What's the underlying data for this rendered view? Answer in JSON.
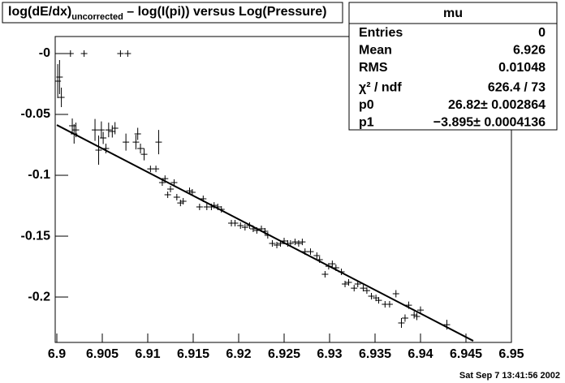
{
  "chart_data": {
    "type": "scatter",
    "title": [
      "log(dE/dx)",
      "uncorrected",
      " – log(I(pi)) versus Log(Pressure)"
    ],
    "footer": "Sat Sep  7 13:41:56 2002",
    "xlim": [
      6.9,
      6.95
    ],
    "ylim": [
      -0.2373,
      0.014
    ],
    "xticks": [
      6.9,
      6.905,
      6.91,
      6.915,
      6.92,
      6.925,
      6.93,
      6.935,
      6.94,
      6.945,
      6.95
    ],
    "yticks": [
      {
        "value": 0,
        "label": "-0"
      },
      -0.05,
      -0.1,
      -0.15,
      -0.2
    ],
    "color": "#000000",
    "x": [
      6.9001,
      6.9003,
      6.9005,
      6.9015,
      6.9017,
      6.9019,
      6.9021,
      6.903,
      6.9042,
      6.9046,
      6.9049,
      6.9051,
      6.9054,
      6.9057,
      6.9061,
      6.9064,
      6.907,
      6.9076,
      6.9078,
      6.9087,
      6.9089,
      6.9092,
      6.9096,
      6.9103,
      6.9109,
      6.9112,
      6.9116,
      6.9119,
      6.9122,
      6.9125,
      6.9129,
      6.9132,
      6.9136,
      6.9139,
      6.9146,
      6.9149,
      6.9157,
      6.9161,
      6.9165,
      6.917,
      6.9173,
      6.9177,
      6.9181,
      6.9192,
      6.9196,
      6.9202,
      6.9207,
      6.9212,
      6.9216,
      6.922,
      6.9225,
      6.9229,
      6.9232,
      6.9237,
      6.9242,
      6.9246,
      6.925,
      6.9254,
      6.9257,
      6.9262,
      6.9266,
      6.927,
      6.9273,
      6.9279,
      6.9286,
      6.9289,
      6.9295,
      6.9299,
      6.9303,
      6.9307,
      6.9313,
      6.9317,
      6.9321,
      6.9327,
      6.9331,
      6.9337,
      6.9341,
      6.9346,
      6.9351,
      6.9354,
      6.9361,
      6.9366,
      6.9373,
      6.9379,
      6.9383,
      6.9387,
      6.9393,
      6.9396,
      6.94,
      6.9429
    ],
    "values": [
      -0.0227,
      -0.0193,
      -0.036,
      0,
      -0.0593,
      -0.066,
      -0.0627,
      0,
      -0.0627,
      -0.0793,
      -0.0627,
      -0.0693,
      -0.078,
      -0.0627,
      -0.064,
      -0.0613,
      0,
      -0.0727,
      0,
      -0.0727,
      -0.066,
      -0.078,
      -0.0827,
      -0.0947,
      -0.0947,
      -0.0727,
      -0.106,
      -0.1027,
      -0.116,
      -0.1113,
      -0.106,
      -0.118,
      -0.1227,
      -0.1213,
      -0.1127,
      -0.114,
      -0.126,
      -0.1193,
      -0.126,
      -0.126,
      -0.1247,
      -0.126,
      -0.128,
      -0.1393,
      -0.1393,
      -0.1413,
      -0.1427,
      -0.1413,
      -0.144,
      -0.1453,
      -0.144,
      -0.146,
      -0.1493,
      -0.156,
      -0.1573,
      -0.156,
      -0.154,
      -0.156,
      -0.156,
      -0.1547,
      -0.156,
      -0.1547,
      -0.1627,
      -0.1627,
      -0.166,
      -0.1693,
      -0.1813,
      -0.1747,
      -0.1727,
      -0.176,
      -0.1793,
      -0.1893,
      -0.188,
      -0.1927,
      -0.1893,
      -0.1927,
      -0.1947,
      -0.1993,
      -0.2007,
      -0.2027,
      -0.206,
      -0.206,
      -0.1973,
      -0.2213,
      -0.2173,
      -0.2067,
      -0.2147,
      -0.216,
      -0.2107,
      -0.2227
    ],
    "yerr": [
      0.014,
      0.014,
      0.008,
      0,
      0.006,
      0.008,
      0.006,
      0,
      0.009,
      0.012,
      0.007,
      0.005,
      0.004,
      0.006,
      0.005,
      0.005,
      0,
      0.007,
      0,
      0.006,
      0.005,
      0.004,
      0.005,
      0.002,
      0.002,
      0.01,
      0.002,
      0.002,
      0.002,
      0.002,
      0.002,
      0.002,
      0.002,
      0.002,
      0.002,
      0.002,
      0.002,
      0.002,
      0.002,
      0.002,
      0.002,
      0.002,
      0.002,
      0.002,
      0.002,
      0.002,
      0.002,
      0.002,
      0.002,
      0.002,
      0.002,
      0.002,
      0.002,
      0.002,
      0.002,
      0.002,
      0.002,
      0.002,
      0.002,
      0.002,
      0.002,
      0.002,
      0.002,
      0.002,
      0.002,
      0.002,
      0.002,
      0.002,
      0.002,
      0.002,
      0.002,
      0.002,
      0.002,
      0.002,
      0.002,
      0.002,
      0.002,
      0.002,
      0.002,
      0.002,
      0.002,
      0.002,
      0.003,
      0.004,
      0.003,
      0.003,
      0.003,
      0.003,
      0.003,
      0.004
    ],
    "fit": {
      "x": [
        6.9,
        6.9458
      ],
      "values": [
        -0.0587,
        -0.236
      ]
    },
    "stats": {
      "title": "mu",
      "rows": [
        [
          "Entries",
          "0"
        ],
        [
          "Mean",
          "6.926"
        ],
        [
          "RMS",
          "0.01048"
        ],
        [
          "χ² / ndf",
          "626.4 / 73"
        ],
        [
          "p0",
          "26.82± 0.002864"
        ],
        [
          "p1",
          "−3.895± 0.0004136"
        ]
      ]
    }
  }
}
